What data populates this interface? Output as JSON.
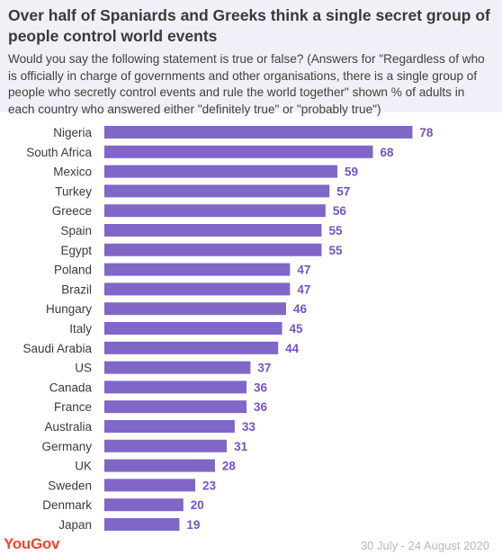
{
  "title": "Over half of Spaniards and Greeks think a single secret group of people control world events",
  "subtitle": "Would you say the following statement is true or false? (Answers for \"Regardless of who is officially in charge of governments and other organisations, there is a single group of people who secretly control events and rule the world together\" shown % of adults in each country who answered either \"definitely true\" or \"probably true\")",
  "brand": "YouGov",
  "date_range": "30 July - 24 August 2020",
  "colors": {
    "bar": "#7f66c7",
    "label": "#3a3a3a",
    "value": "#7454bf",
    "brand": "#ff412c",
    "header_bg": "#f1eff7"
  },
  "chart_data": {
    "type": "bar",
    "orientation": "horizontal",
    "categories": [
      "Nigeria",
      "South Africa",
      "Mexico",
      "Turkey",
      "Greece",
      "Spain",
      "Egypt",
      "Poland",
      "Brazil",
      "Hungary",
      "Italy",
      "Saudi Arabia",
      "US",
      "Canada",
      "France",
      "Australia",
      "Germany",
      "UK",
      "Sweden",
      "Denmark",
      "Japan"
    ],
    "values": [
      78,
      68,
      59,
      57,
      56,
      55,
      55,
      47,
      47,
      46,
      45,
      44,
      37,
      36,
      36,
      33,
      31,
      28,
      23,
      20,
      19
    ],
    "title": "Over half of Spaniards and Greeks think a single secret group of people control world events",
    "xlabel": "",
    "ylabel": "",
    "xlim": [
      0,
      78
    ],
    "grid": false,
    "legend": "none",
    "data_labels": true
  }
}
